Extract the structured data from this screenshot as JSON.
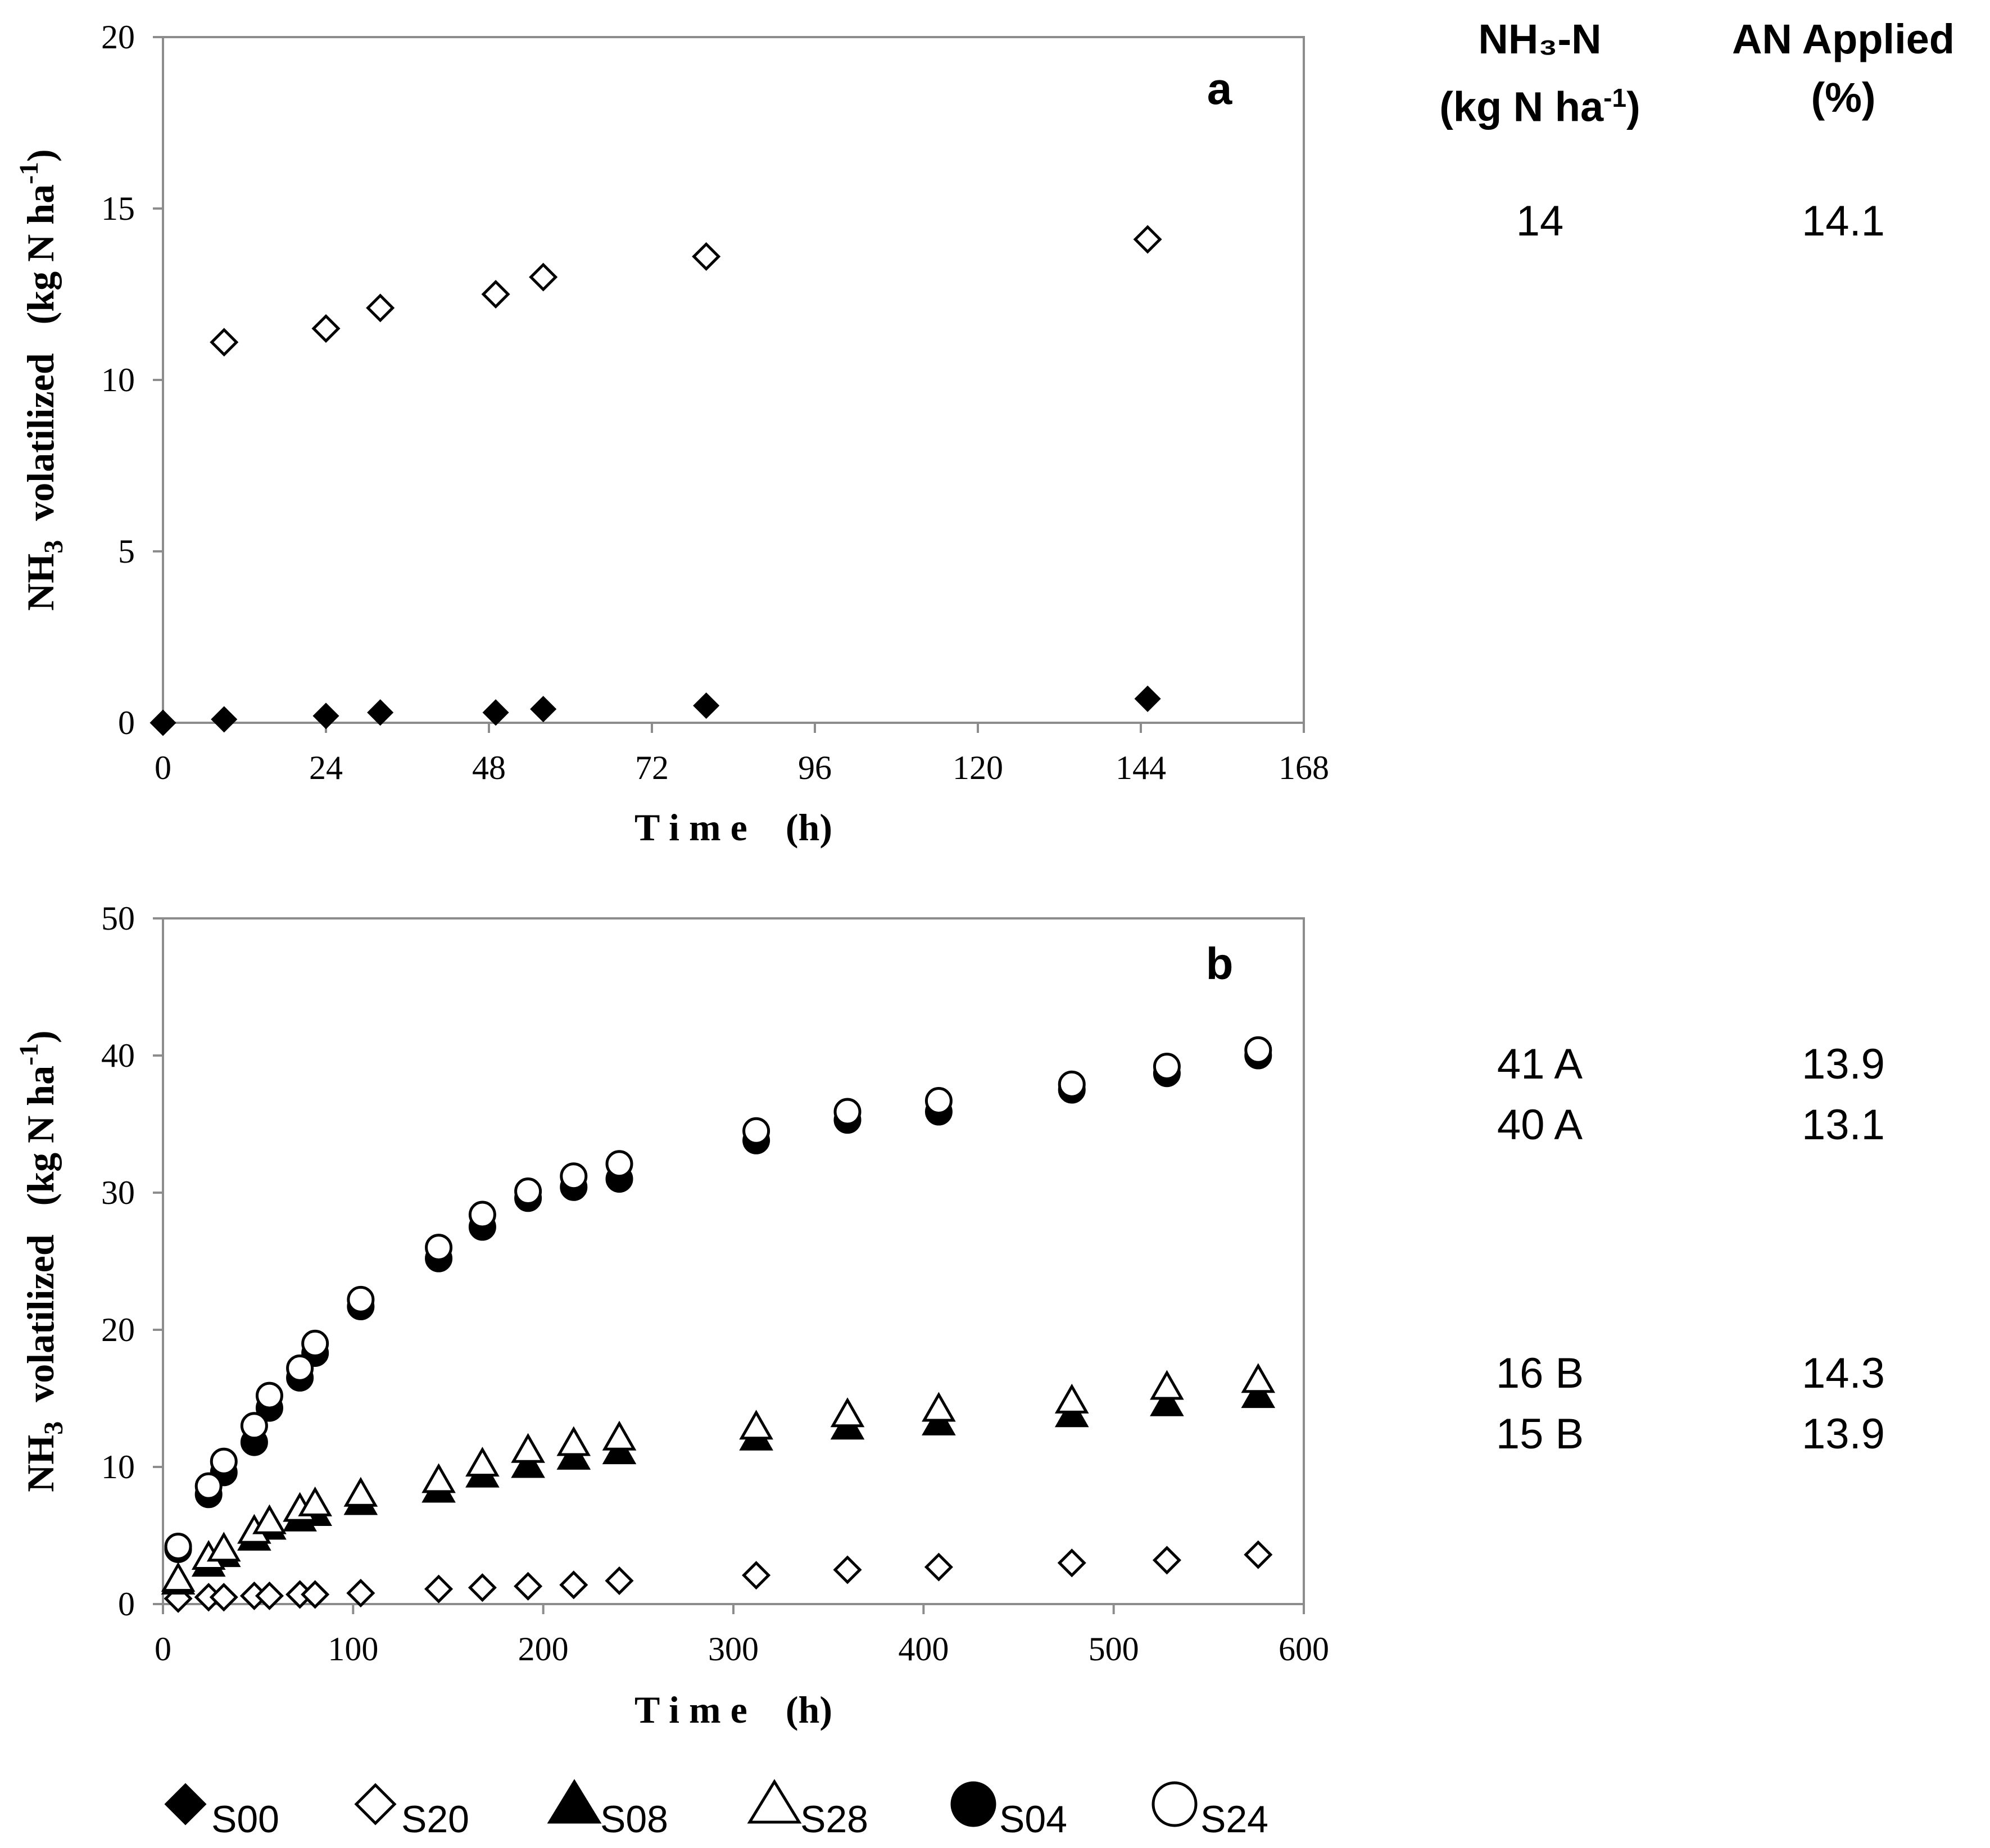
{
  "chart_data": [
    {
      "panel": "a",
      "type": "scatter",
      "xlabel": "T i m e    (h)",
      "ylabel": "NH3  volatilized   (kg N ha-1)",
      "xlim": [
        0,
        168
      ],
      "ylim": [
        0,
        20
      ],
      "xticks": [
        "0",
        "24",
        "48",
        "72",
        "96",
        "120",
        "144",
        "168"
      ],
      "yticks": [
        "0",
        "5",
        "10",
        "15",
        "20"
      ],
      "series": [
        {
          "name": "S00",
          "marker": "diamond-filled",
          "x": [
            0,
            9,
            24,
            32,
            49,
            56,
            80,
            145
          ],
          "y": [
            0,
            0.1,
            0.2,
            0.3,
            0.3,
            0.4,
            0.5,
            0.7
          ]
        },
        {
          "name": "S20",
          "marker": "diamond-open",
          "x": [
            9,
            24,
            32,
            49,
            56,
            80,
            145
          ],
          "y": [
            11.1,
            11.5,
            12.1,
            12.5,
            13.0,
            13.6,
            14.1
          ]
        }
      ]
    },
    {
      "panel": "b",
      "type": "scatter",
      "xlabel": "T i m e    (h)",
      "ylabel": "NH3  volatilized   (kg N ha-1)",
      "xlim": [
        0,
        600
      ],
      "ylim": [
        0,
        50
      ],
      "xticks": [
        "0",
        "100",
        "200",
        "300",
        "400",
        "500",
        "600"
      ],
      "yticks": [
        "0",
        "10",
        "20",
        "30",
        "40",
        "50"
      ],
      "series": [
        {
          "name": "S20",
          "marker": "diamond-open",
          "x": [
            8,
            24,
            32,
            48,
            56,
            72,
            80,
            104,
            145,
            168,
            192,
            216,
            240,
            312,
            360,
            408,
            478,
            528,
            576
          ],
          "y": [
            0.4,
            0.5,
            0.5,
            0.6,
            0.6,
            0.7,
            0.7,
            0.8,
            1.1,
            1.2,
            1.3,
            1.4,
            1.7,
            2.1,
            2.5,
            2.7,
            3.0,
            3.2,
            3.6
          ]
        },
        {
          "name": "S08",
          "marker": "triangle-filled",
          "x": [
            8,
            24,
            32,
            48,
            56,
            72,
            80,
            104,
            145,
            168,
            192,
            216,
            240,
            312,
            360,
            408,
            478,
            528,
            576
          ],
          "y": [
            1.6,
            2.9,
            3.6,
            4.8,
            5.6,
            6.2,
            6.6,
            7.4,
            8.3,
            9.4,
            10.1,
            10.7,
            11.1,
            12.1,
            12.9,
            13.2,
            13.8,
            14.6,
            15.2
          ]
        },
        {
          "name": "S28",
          "marker": "triangle-open",
          "x": [
            8,
            24,
            32,
            48,
            56,
            72,
            80,
            104,
            145,
            168,
            192,
            216,
            240,
            312,
            360,
            408,
            478,
            528,
            576
          ],
          "y": [
            1.8,
            3.4,
            4.0,
            5.3,
            6.0,
            6.9,
            7.3,
            8.0,
            9.0,
            10.2,
            11.2,
            11.7,
            12.1,
            12.9,
            13.8,
            14.2,
            14.8,
            15.8,
            16.3
          ]
        },
        {
          "name": "S04",
          "marker": "circle-filled",
          "x": [
            8,
            24,
            32,
            48,
            56,
            72,
            80,
            104,
            145,
            168,
            192,
            216,
            240,
            312,
            360,
            408,
            478,
            528,
            576
          ],
          "y": [
            4.0,
            8.0,
            9.6,
            11.8,
            14.3,
            16.5,
            18.3,
            21.7,
            25.2,
            27.5,
            29.6,
            30.4,
            31.0,
            33.8,
            35.3,
            35.9,
            37.5,
            38.7,
            40.0
          ]
        },
        {
          "name": "S24",
          "marker": "circle-open",
          "x": [
            8,
            24,
            32,
            48,
            56,
            72,
            80,
            104,
            145,
            168,
            192,
            216,
            240,
            312,
            360,
            408,
            478,
            528,
            576
          ],
          "y": [
            4.2,
            8.6,
            10.4,
            13.0,
            15.2,
            17.2,
            19.0,
            22.2,
            26.0,
            28.4,
            30.1,
            31.2,
            32.1,
            34.5,
            35.9,
            36.7,
            37.9,
            39.2,
            40.4
          ]
        }
      ]
    }
  ],
  "panels": {
    "a": "a",
    "b": "b"
  },
  "axis_labels": {
    "x": "T i m e    (h)",
    "y_base": "NH",
    "y_sub": "3",
    "y_mid": "  volatilized   (kg N ha",
    "y_sup": "-1",
    "y_end": ")"
  },
  "legend": [
    {
      "name": "S00",
      "marker": "diamond-filled"
    },
    {
      "name": "S20",
      "marker": "diamond-open"
    },
    {
      "name": "S08",
      "marker": "triangle-filled"
    },
    {
      "name": "S28",
      "marker": "triangle-open"
    },
    {
      "name": "S04",
      "marker": "circle-filled"
    },
    {
      "name": "S24",
      "marker": "circle-open"
    }
  ],
  "side_table": {
    "col1_header_line1": "NH₃-N",
    "col1_header_line2_base": "(kg N ha",
    "col1_header_line2_sup": "-1",
    "col1_header_line2_end": ")",
    "col2_header_line1": "AN Applied",
    "col2_header_line2": "(%)",
    "panel_a_rows": [
      {
        "nh3n": "14",
        "an_applied": "14.1"
      }
    ],
    "panel_b_rows": [
      {
        "nh3n": "41 A",
        "an_applied": "13.9"
      },
      {
        "nh3n": "40 A",
        "an_applied": "13.1"
      },
      {
        "nh3n": "16 B",
        "an_applied": "14.3"
      },
      {
        "nh3n": "15 B",
        "an_applied": "13.9"
      }
    ]
  }
}
